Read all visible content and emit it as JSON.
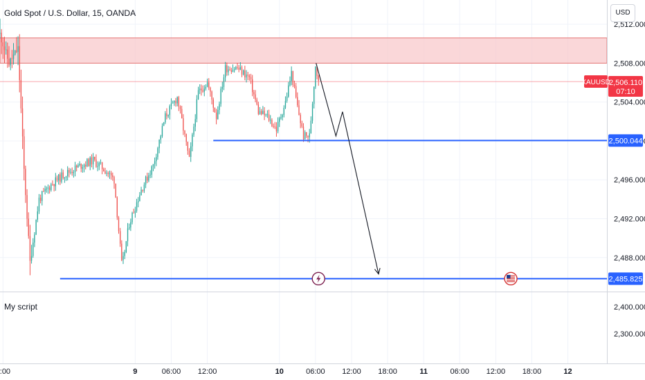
{
  "header": {
    "title": "Gold Spot / U.S. Dollar, 15, OANDA",
    "currency": "USD"
  },
  "lower_panel": {
    "label": "My script",
    "ticks": [
      "2,400.000",
      "2,300.000"
    ]
  },
  "colors": {
    "bull": "#26a69a",
    "bear": "#ef5350",
    "level_line": "#2962ff",
    "zone_fill": "#f8c9cc",
    "zone_border": "#e57373",
    "price_tag": "#f23645",
    "arrow": "#131722"
  },
  "chart_data": {
    "type": "candlestick",
    "symbol": "XAUUSD",
    "ylim": [
      2484.5,
      2514.5
    ],
    "y_ticks": [
      "2,512.000",
      "2,508.000",
      "2,504.000",
      "2,500.000",
      "2,496.000",
      "2,492.000",
      "2,488.000"
    ],
    "y_tick_values": [
      2512,
      2508,
      2504,
      2500,
      2496,
      2492,
      2488
    ],
    "x_ticks": [
      "2:00",
      "9",
      "06:00",
      "12:00",
      "10",
      "06:00",
      "12:00",
      "18:00",
      "11",
      "06:00",
      "12:00",
      "18:00",
      "12"
    ],
    "x_tick_hours": [
      2,
      24,
      30,
      36,
      48,
      54,
      60,
      66,
      72,
      78,
      84,
      90,
      96
    ],
    "x_range_hours": [
      1.5,
      102.5
    ],
    "last_price": {
      "symbol": "XAUUSD",
      "value": "2,506.110",
      "countdown": "07:10",
      "numeric": 2506.11
    },
    "levels": [
      {
        "value": "2,500.044",
        "numeric": 2500.044,
        "from_hour": 37.0
      },
      {
        "value": "2,485.825",
        "numeric": 2485.825,
        "from_hour": 11.5
      }
    ],
    "resistance_zone": {
      "low": 2508.0,
      "high": 2510.6
    },
    "projection": [
      [
        54.1,
        2508.0
      ],
      [
        57.4,
        2500.5
      ],
      [
        58.5,
        2503.0
      ],
      [
        64.5,
        2486.3
      ]
    ],
    "events": [
      {
        "name": "lightning-icon",
        "hour": 54.5,
        "value": 2485.825
      },
      {
        "name": "us-flag-icon",
        "hour": 86.5,
        "value": 2485.825
      }
    ],
    "waypoints": [
      [
        1.5,
        2511.0
      ],
      [
        3.0,
        2508.0
      ],
      [
        4.5,
        2509.5
      ],
      [
        5.5,
        2497.0
      ],
      [
        6.5,
        2487.5
      ],
      [
        8.0,
        2494.0
      ],
      [
        10.0,
        2495.5
      ],
      [
        12.0,
        2496.5
      ],
      [
        15.0,
        2497.5
      ],
      [
        17.0,
        2498.0
      ],
      [
        19.0,
        2497.0
      ],
      [
        20.5,
        2496.0
      ],
      [
        21.8,
        2487.0
      ],
      [
        23.0,
        2491.5
      ],
      [
        25.0,
        2495.0
      ],
      [
        27.0,
        2497.5
      ],
      [
        29.0,
        2502.5
      ],
      [
        31.0,
        2504.5
      ],
      [
        33.0,
        2498.0
      ],
      [
        34.5,
        2505.0
      ],
      [
        36.0,
        2506.0
      ],
      [
        37.5,
        2502.5
      ],
      [
        39.0,
        2507.5
      ],
      [
        41.0,
        2507.5
      ],
      [
        43.0,
        2506.5
      ],
      [
        44.5,
        2503.0
      ],
      [
        46.0,
        2502.5
      ],
      [
        47.5,
        2501.2
      ],
      [
        49.0,
        2504.0
      ],
      [
        50.0,
        2507.0
      ],
      [
        51.0,
        2503.5
      ],
      [
        52.0,
        2500.5
      ],
      [
        53.0,
        2500.5
      ],
      [
        53.5,
        2504.0
      ],
      [
        54.0,
        2507.8
      ],
      [
        54.3,
        2506.8
      ],
      [
        54.7,
        2506.1
      ]
    ]
  }
}
